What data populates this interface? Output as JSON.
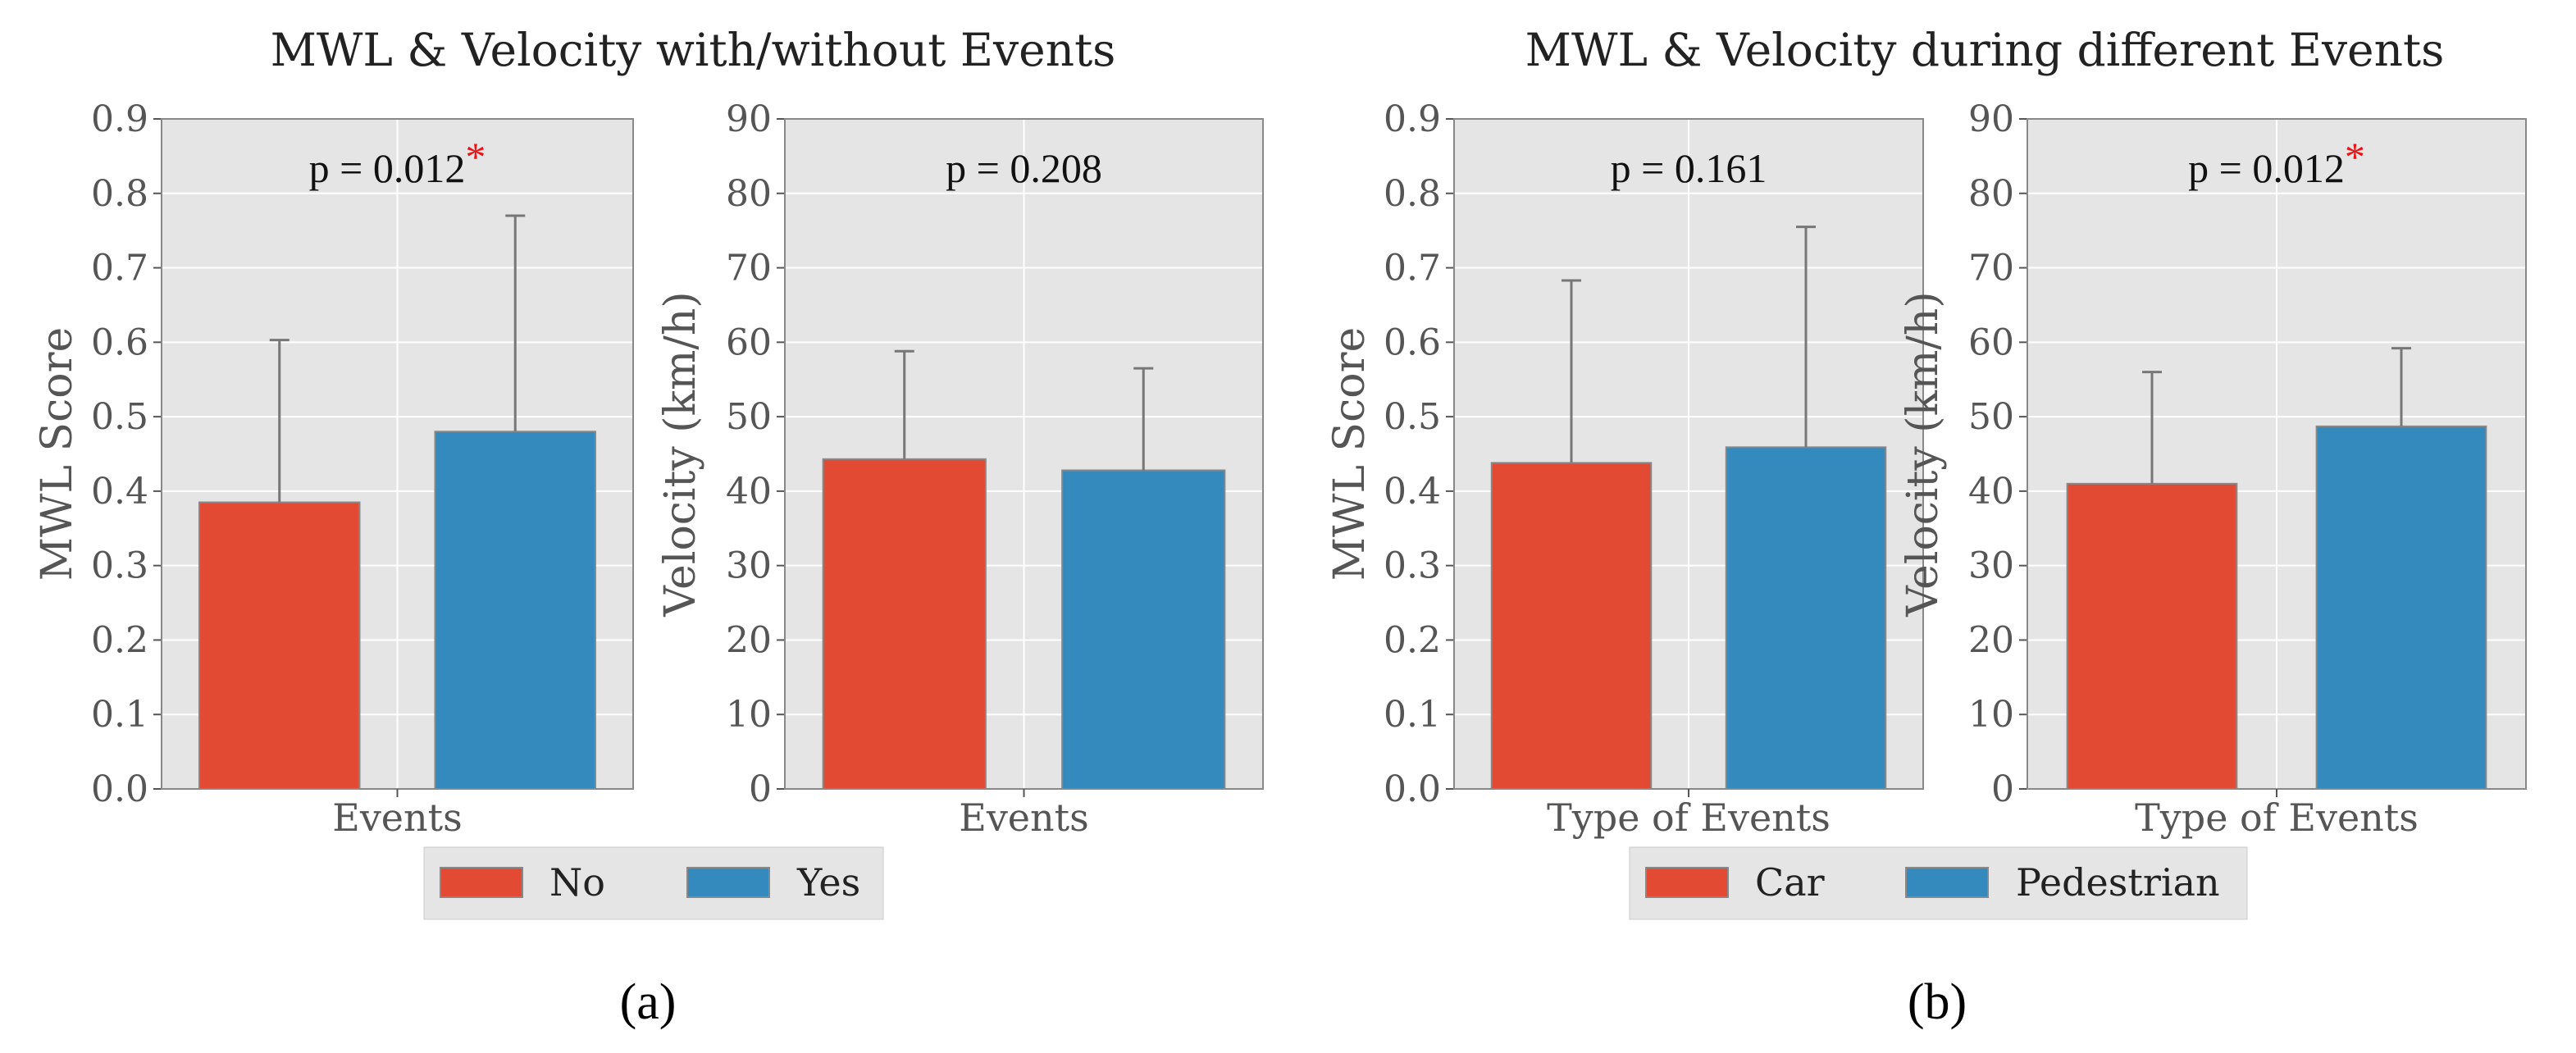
{
  "colors": {
    "red": "#e24a33",
    "blue": "#348abd",
    "plot_bg": "#e5e5e5",
    "grid": "#ffffff",
    "err": "#777777",
    "star": "#ee1111"
  },
  "titles": {
    "a": "MWL & Velocity with/without Events",
    "b": "MWL & Velocity during different Events"
  },
  "legend_a": [
    "No",
    "Yes"
  ],
  "legend_b": [
    "Car",
    "Pedestrian"
  ],
  "panel_labels": {
    "a": "(a)",
    "b": "(b)"
  },
  "chart_data": [
    {
      "type": "bar",
      "title": "MWL & Velocity with/without Events",
      "xlabel": "Events",
      "ylabel": "MWL Score",
      "ylim": [
        0,
        0.9
      ],
      "yticks": [
        "0.0",
        "0.1",
        "0.2",
        "0.3",
        "0.4",
        "0.5",
        "0.6",
        "0.7",
        "0.8",
        "0.9"
      ],
      "categories": [
        "No",
        "Yes"
      ],
      "values": [
        0.385,
        0.48
      ],
      "errors": [
        0.218,
        0.29
      ],
      "annotation": {
        "text": "p = 0.012",
        "star": "*"
      }
    },
    {
      "type": "bar",
      "title": "MWL & Velocity with/without Events",
      "xlabel": "Events",
      "ylabel": "Velocity (km/h)",
      "ylim": [
        0,
        90
      ],
      "yticks": [
        "0",
        "10",
        "20",
        "30",
        "40",
        "50",
        "60",
        "70",
        "80",
        "90"
      ],
      "categories": [
        "No",
        "Yes"
      ],
      "values": [
        44.3,
        42.8
      ],
      "errors": [
        14.5,
        13.7
      ],
      "annotation": {
        "text": "p = 0.208",
        "star": ""
      }
    },
    {
      "type": "bar",
      "title": "MWL & Velocity during different Events",
      "xlabel": "Type of Events",
      "ylabel": "MWL Score",
      "ylim": [
        0,
        0.9
      ],
      "yticks": [
        "0.0",
        "0.1",
        "0.2",
        "0.3",
        "0.4",
        "0.5",
        "0.6",
        "0.7",
        "0.8",
        "0.9"
      ],
      "categories": [
        "Car",
        "Pedestrian"
      ],
      "values": [
        0.438,
        0.459
      ],
      "errors": [
        0.245,
        0.296
      ],
      "annotation": {
        "text": "p = 0.161",
        "star": ""
      }
    },
    {
      "type": "bar",
      "title": "MWL & Velocity during different Events",
      "xlabel": "Type of Events",
      "ylabel": "Velocity (km/h)",
      "ylim": [
        0,
        90
      ],
      "yticks": [
        "0",
        "10",
        "20",
        "30",
        "40",
        "50",
        "60",
        "70",
        "80",
        "90"
      ],
      "categories": [
        "Car",
        "Pedestrian"
      ],
      "values": [
        41.0,
        48.7
      ],
      "errors": [
        15.0,
        10.5
      ],
      "annotation": {
        "text": "p = 0.012",
        "star": "*"
      }
    }
  ]
}
